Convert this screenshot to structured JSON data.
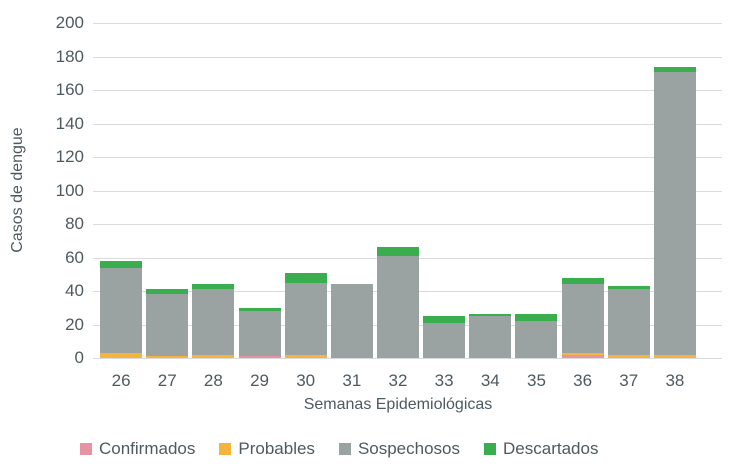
{
  "chart_data": {
    "type": "bar",
    "stacked": true,
    "title": "",
    "xlabel": "Semanas Epidemiológicas",
    "ylabel": "Casos de dengue",
    "categories": [
      "26",
      "27",
      "28",
      "29",
      "30",
      "31",
      "32",
      "33",
      "34",
      "35",
      "36",
      "37",
      "38"
    ],
    "series": [
      {
        "name": "Confirmados",
        "color": "#e693a3",
        "values": [
          0,
          0,
          0,
          1,
          0,
          0,
          0,
          0,
          0,
          0,
          2,
          0,
          0
        ]
      },
      {
        "name": "Probables",
        "color": "#f6b43c",
        "values": [
          3,
          1,
          2,
          0,
          2,
          0,
          0,
          0,
          0,
          0,
          1,
          2,
          2
        ]
      },
      {
        "name": "Sospechosos",
        "color": "#9aa3a1",
        "values": [
          51,
          37,
          39,
          27,
          43,
          44,
          61,
          21,
          25,
          22,
          41,
          39,
          169
        ]
      },
      {
        "name": "Descartados",
        "color": "#3aae4f",
        "values": [
          4,
          3,
          3,
          2,
          6,
          0,
          5,
          4,
          1,
          4,
          4,
          2,
          3
        ]
      }
    ],
    "totals": [
      58,
      41,
      44,
      30,
      51,
      44,
      66,
      25,
      26,
      26,
      48,
      43,
      174
    ],
    "ylim": [
      0,
      200
    ],
    "yticks": [
      0,
      20,
      40,
      60,
      80,
      100,
      120,
      140,
      160,
      180,
      200
    ],
    "grid": true,
    "legend_position": "bottom"
  },
  "style": {
    "text_color": "#4e5a61",
    "grid_color": "#d9dcdc",
    "background": "#ffffff"
  }
}
